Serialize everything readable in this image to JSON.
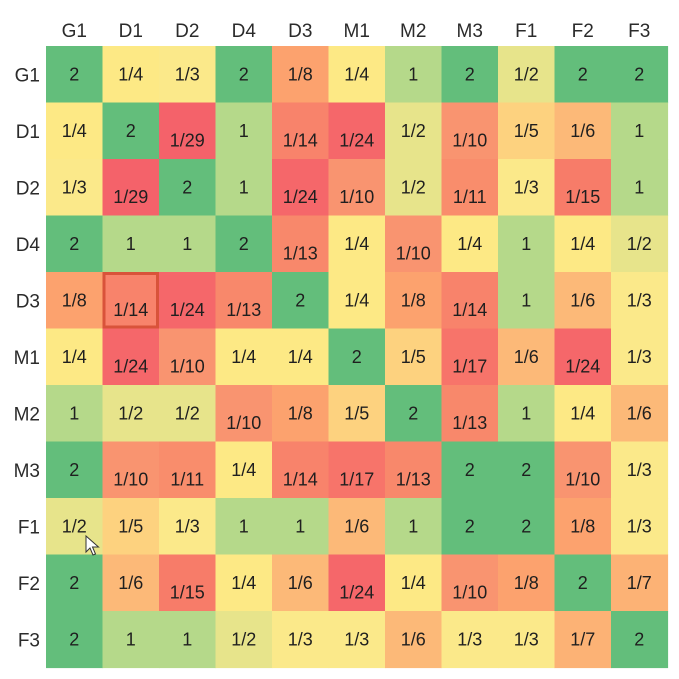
{
  "chart_data": {
    "type": "heatmap",
    "title": "",
    "xlabel": "",
    "ylabel": "",
    "columns": [
      "G1",
      "D1",
      "D2",
      "D4",
      "D3",
      "M1",
      "M2",
      "M3",
      "F1",
      "F2",
      "F3"
    ],
    "rows": [
      "G1",
      "D1",
      "D2",
      "D4",
      "D3",
      "M1",
      "M2",
      "M3",
      "F1",
      "F2",
      "F3"
    ],
    "cells": [
      [
        "2",
        "1/4",
        "1/3",
        "2",
        "1/8",
        "1/4",
        "1",
        "2",
        "1/2",
        "2",
        "2"
      ],
      [
        "1/4",
        "2",
        "1/29",
        "1",
        "1/14",
        "1/24",
        "1/2",
        "1/10",
        "1/5",
        "1/6",
        "1"
      ],
      [
        "1/3",
        "1/29",
        "2",
        "1",
        "1/24",
        "1/10",
        "1/2",
        "1/11",
        "1/3",
        "1/15",
        "1"
      ],
      [
        "2",
        "1",
        "1",
        "2",
        "1/13",
        "1/4",
        "1/10",
        "1/4",
        "1",
        "1/4",
        "1/2"
      ],
      [
        "1/8",
        "1/14",
        "1/24",
        "1/13",
        "2",
        "1/4",
        "1/8",
        "1/14",
        "1",
        "1/6",
        "1/3"
      ],
      [
        "1/4",
        "1/24",
        "1/10",
        "1/4",
        "1/4",
        "2",
        "1/5",
        "1/17",
        "1/6",
        "1/24",
        "1/3"
      ],
      [
        "1",
        "1/2",
        "1/2",
        "1/10",
        "1/8",
        "1/5",
        "2",
        "1/13",
        "1",
        "1/4",
        "1/6"
      ],
      [
        "2",
        "1/10",
        "1/11",
        "1/4",
        "1/14",
        "1/17",
        "1/13",
        "2",
        "2",
        "1/10",
        "1/3"
      ],
      [
        "1/2",
        "1/5",
        "1/3",
        "1",
        "1",
        "1/6",
        "1",
        "2",
        "2",
        "1/8",
        "1/3"
      ],
      [
        "2",
        "1/6",
        "1/15",
        "1/4",
        "1/6",
        "1/24",
        "1/4",
        "1/10",
        "1/8",
        "2",
        "1/7"
      ],
      [
        "2",
        "1",
        "1",
        "1/2",
        "1/3",
        "1/3",
        "1/6",
        "1/3",
        "1/3",
        "1/7",
        "2"
      ]
    ],
    "highlighted_cell": {
      "row": "D3",
      "column": "D1"
    },
    "colors": {
      "2": "#63be7b",
      "1": "#b5d98a",
      "1/2": "#e7e48b",
      "1/3": "#fbe98a",
      "1/4": "#fde985",
      "1/5": "#fdd27f",
      "1/6": "#fcb978",
      "1/7": "#fcb275",
      "1/8": "#fca26e",
      "1/10": "#f99470",
      "1/11": "#f98d6c",
      "1/13": "#f8886b",
      "1/14": "#f8836b",
      "1/15": "#f77c69",
      "1/17": "#f7746a",
      "1/24": "#f5676a",
      "1/29": "#f4626a",
      "highlight_border": "#d9533a"
    },
    "grid": false,
    "legend": "none"
  }
}
